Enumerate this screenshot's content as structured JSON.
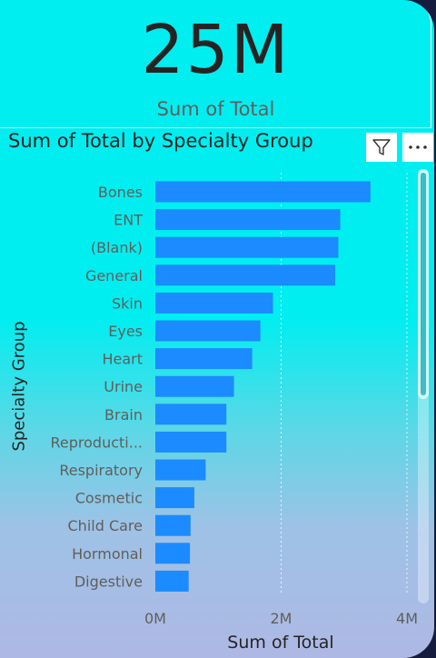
{
  "card": {
    "value": "25M",
    "label": "Sum of Total"
  },
  "header": {
    "filter_icon": "filter-icon",
    "more_icon": "more-options-icon"
  },
  "scroll": {
    "position_fraction": 0.0,
    "visible_fraction": 0.53
  },
  "chart_data": {
    "type": "bar",
    "orientation": "horizontal",
    "title": "Sum of Total by Specialty Group",
    "xlabel": "Sum of Total",
    "ylabel": "Specialty Group",
    "categories": [
      "Bones",
      "ENT",
      "(Blank)",
      "General",
      "Skin",
      "Eyes",
      "Heart",
      "Urine",
      "Brain",
      "Reproducti...",
      "Respiratory",
      "Cosmetic",
      "Child Care",
      "Hormonal",
      "Digestive"
    ],
    "values": [
      3.42,
      2.94,
      2.91,
      2.86,
      1.87,
      1.67,
      1.54,
      1.25,
      1.13,
      1.13,
      0.8,
      0.62,
      0.56,
      0.55,
      0.53
    ],
    "unit": "M",
    "xlim": [
      0,
      4
    ],
    "xticks": [
      "0M",
      "2M",
      "4M"
    ],
    "xtick_values": [
      0,
      2,
      4
    ],
    "gridlines": true,
    "colors": {
      "bar": "#1b8bff",
      "text": "#252423",
      "category_text": "#605e5c",
      "gridline": "#ffffff"
    }
  }
}
